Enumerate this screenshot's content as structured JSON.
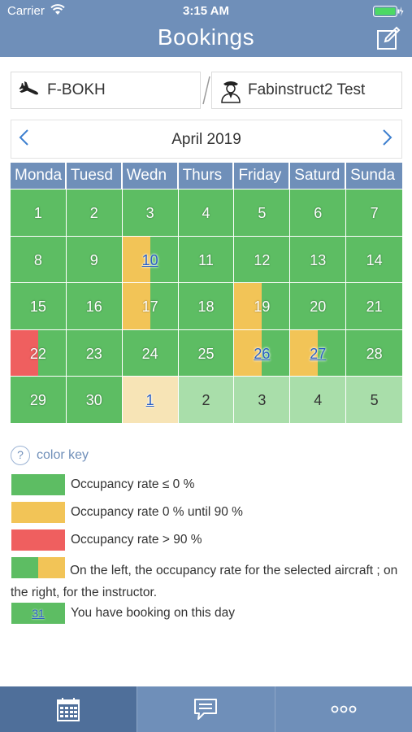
{
  "status_bar": {
    "carrier": "Carrier",
    "time": "3:15 AM"
  },
  "nav": {
    "title": "Bookings"
  },
  "selectors": {
    "aircraft": "F-BOKH",
    "instructor": "Fabinstruct2 Test"
  },
  "calendar": {
    "month": "April 2019",
    "weekdays": [
      "Monda",
      "Tuesd",
      "Wedn",
      "Thurs",
      "Friday",
      "Saturd",
      "Sunda"
    ],
    "weeks": [
      [
        {
          "day": "1",
          "bg": "green"
        },
        {
          "day": "2",
          "bg": "green"
        },
        {
          "day": "3",
          "bg": "green"
        },
        {
          "day": "4",
          "bg": "green"
        },
        {
          "day": "5",
          "bg": "green"
        },
        {
          "day": "6",
          "bg": "green"
        },
        {
          "day": "7",
          "bg": "green"
        }
      ],
      [
        {
          "day": "8",
          "bg": "green"
        },
        {
          "day": "9",
          "bg": "green"
        },
        {
          "day": "10",
          "bg": "green",
          "left": "yellow",
          "booked": true
        },
        {
          "day": "11",
          "bg": "green"
        },
        {
          "day": "12",
          "bg": "green"
        },
        {
          "day": "13",
          "bg": "green"
        },
        {
          "day": "14",
          "bg": "green"
        }
      ],
      [
        {
          "day": "15",
          "bg": "green"
        },
        {
          "day": "16",
          "bg": "green"
        },
        {
          "day": "17",
          "bg": "green",
          "left": "yellow"
        },
        {
          "day": "18",
          "bg": "green"
        },
        {
          "day": "19",
          "bg": "green",
          "left": "yellow"
        },
        {
          "day": "20",
          "bg": "green"
        },
        {
          "day": "21",
          "bg": "green"
        }
      ],
      [
        {
          "day": "22",
          "bg": "green",
          "left": "red"
        },
        {
          "day": "23",
          "bg": "green"
        },
        {
          "day": "24",
          "bg": "green"
        },
        {
          "day": "25",
          "bg": "green"
        },
        {
          "day": "26",
          "bg": "green",
          "left": "yellow",
          "booked": true
        },
        {
          "day": "27",
          "bg": "green",
          "left": "yellow",
          "booked": true,
          "selected": true
        },
        {
          "day": "28",
          "bg": "green"
        }
      ],
      [
        {
          "day": "29",
          "bg": "green"
        },
        {
          "day": "30",
          "bg": "green"
        },
        {
          "day": "1",
          "bg": "yellow-light",
          "booked": true
        },
        {
          "day": "2",
          "bg": "green-light",
          "dark": true
        },
        {
          "day": "3",
          "bg": "green-light",
          "dark": true
        },
        {
          "day": "4",
          "bg": "green-light",
          "dark": true
        },
        {
          "day": "5",
          "bg": "green-light",
          "dark": true
        }
      ]
    ]
  },
  "color_key": {
    "title": "color key",
    "q": "?",
    "items": [
      {
        "text": "Occupancy rate ≤ 0 %"
      },
      {
        "text": "Occupancy rate 0 % until 90 %"
      },
      {
        "text": "Occupancy rate > 90 %"
      },
      {
        "text": "On the left, the occupancy rate for the selected aircraft ; on the right, for the instructor."
      },
      {
        "text": "You have booking on this day",
        "day": "31"
      }
    ]
  },
  "colors": {
    "green": "#5dbd63",
    "yellow": "#f2c457",
    "red": "#ef5f5f",
    "header": "#6f8fb9"
  },
  "tabs": [
    {
      "icon": "calendar-icon",
      "active": true
    },
    {
      "icon": "chat-icon",
      "active": false
    },
    {
      "icon": "more-icon",
      "active": false
    }
  ]
}
